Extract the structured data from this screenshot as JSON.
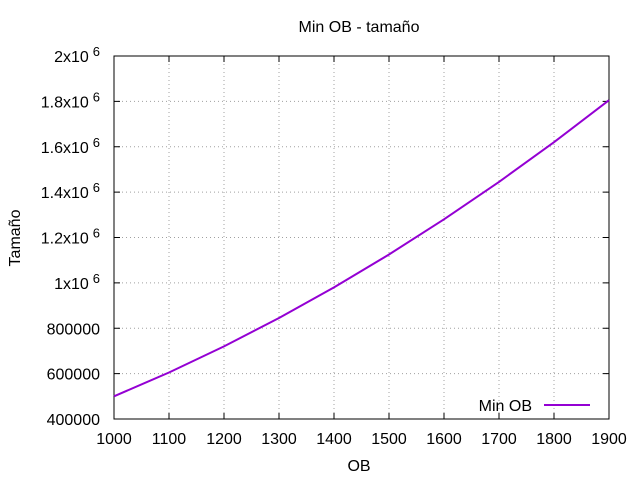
{
  "chart_data": {
    "type": "line",
    "title": "Min OB - tamaño",
    "xlabel": "OB",
    "ylabel": "Tamaño",
    "xlim": [
      1000,
      1900
    ],
    "ylim": [
      400000,
      2000000
    ],
    "grid": true,
    "legend_position": "bottom-right",
    "x_ticks": [
      {
        "value": 1000,
        "label": "1000"
      },
      {
        "value": 1100,
        "label": "1100"
      },
      {
        "value": 1200,
        "label": "1200"
      },
      {
        "value": 1300,
        "label": "1300"
      },
      {
        "value": 1400,
        "label": "1400"
      },
      {
        "value": 1500,
        "label": "1500"
      },
      {
        "value": 1600,
        "label": "1600"
      },
      {
        "value": 1700,
        "label": "1700"
      },
      {
        "value": 1800,
        "label": "1800"
      },
      {
        "value": 1900,
        "label": "1900"
      }
    ],
    "y_ticks": [
      {
        "value": 400000,
        "label": "400000",
        "exp": ""
      },
      {
        "value": 600000,
        "label": "600000",
        "exp": ""
      },
      {
        "value": 800000,
        "label": "800000",
        "exp": ""
      },
      {
        "value": 1000000,
        "label": "1x10",
        "exp": "6"
      },
      {
        "value": 1200000,
        "label": "1.2x10",
        "exp": "6"
      },
      {
        "value": 1400000,
        "label": "1.4x10",
        "exp": "6"
      },
      {
        "value": 1600000,
        "label": "1.6x10",
        "exp": "6"
      },
      {
        "value": 1800000,
        "label": "1.8x10",
        "exp": "6"
      },
      {
        "value": 2000000,
        "label": "2x10",
        "exp": "6"
      }
    ],
    "series": [
      {
        "name": "Min OB",
        "color": "#9400d3",
        "x": [
          1000,
          1100,
          1200,
          1300,
          1400,
          1500,
          1600,
          1700,
          1800,
          1900
        ],
        "values": [
          500000,
          605000,
          720000,
          845000,
          980000,
          1125000,
          1280000,
          1445000,
          1620000,
          1805000
        ]
      }
    ]
  }
}
